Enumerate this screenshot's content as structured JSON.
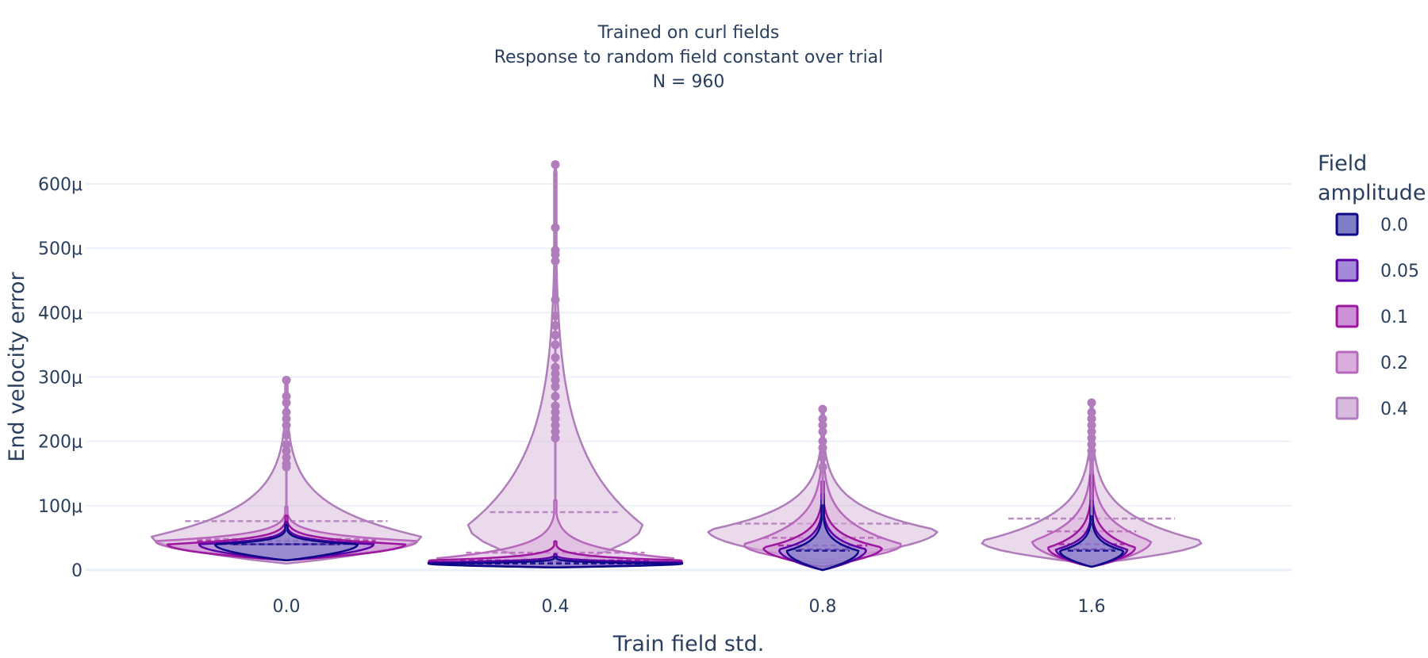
{
  "chart_data": {
    "type": "violin",
    "title": [
      "Trained on curl fields",
      "Response to random field constant over trial",
      "N = 960"
    ],
    "xlabel": "Train field std.",
    "ylabel": "End velocity error",
    "categories": [
      "0.0",
      "0.4",
      "0.8",
      "1.6"
    ],
    "y_ticks": [
      {
        "value": 0,
        "label": "0"
      },
      {
        "value": 100,
        "label": "100μ"
      },
      {
        "value": 200,
        "label": "200μ"
      },
      {
        "value": 300,
        "label": "300μ"
      },
      {
        "value": 400,
        "label": "400μ"
      },
      {
        "value": 500,
        "label": "500μ"
      },
      {
        "value": 600,
        "label": "600μ"
      }
    ],
    "y_unit": "μ (×1e-6)",
    "ylim": [
      -3,
      665
    ],
    "grid": true,
    "legend": {
      "title": [
        "Field",
        "amplitude"
      ],
      "placement": "right"
    },
    "series": [
      {
        "name": "0.0",
        "color": "#0d0887",
        "fill": "#7e7dc6",
        "groups": [
          {
            "mean": 40,
            "min": 15,
            "max": 70,
            "mode": 40,
            "spread": 90
          },
          {
            "mean": 10,
            "min": 4,
            "max": 20,
            "mode": 10,
            "spread": 160
          },
          {
            "mean": 30,
            "min": 0,
            "max": 110,
            "mode": 30,
            "spread": 45
          },
          {
            "mean": 30,
            "min": 5,
            "max": 100,
            "mode": 30,
            "spread": 40
          }
        ]
      },
      {
        "name": "0.05",
        "color": "#5c01a6",
        "fill": "#a48ad8",
        "groups": [
          {
            "mean": 40,
            "min": 15,
            "max": 75,
            "mode": 40,
            "spread": 110
          },
          {
            "mean": 12,
            "min": 4,
            "max": 25,
            "mode": 12,
            "spread": 160
          },
          {
            "mean": 32,
            "min": 0,
            "max": 120,
            "mode": 32,
            "spread": 55
          },
          {
            "mean": 32,
            "min": 5,
            "max": 110,
            "mode": 32,
            "spread": 45
          }
        ]
      },
      {
        "name": "0.1",
        "color": "#9c179e",
        "fill": "#cc91d6",
        "groups": [
          {
            "mean": 45,
            "min": 15,
            "max": 85,
            "mode": 40,
            "spread": 150
          },
          {
            "mean": 15,
            "min": 4,
            "max": 45,
            "mode": 15,
            "spread": 160
          },
          {
            "mean": 38,
            "min": 5,
            "max": 140,
            "mode": 35,
            "spread": 75
          },
          {
            "mean": 40,
            "min": 5,
            "max": 150,
            "mode": 35,
            "spread": 55
          }
        ]
      },
      {
        "name": "0.2",
        "color": "#b868bc",
        "fill": "#d9aedd",
        "groups": [
          {
            "mean": 48,
            "min": 15,
            "max": 100,
            "mode": 45,
            "spread": 165
          },
          {
            "mean": 27,
            "min": 5,
            "max": 110,
            "mode": 18,
            "spread": 150
          },
          {
            "mean": 50,
            "min": 10,
            "max": 220,
            "mode": 40,
            "spread": 100
          },
          {
            "mean": 60,
            "min": 5,
            "max": 210,
            "mode": 45,
            "spread": 75
          }
        ]
      },
      {
        "name": "0.4",
        "color": "#b07cbb",
        "fill": "#d9bcdd",
        "groups": [
          {
            "mean": 76,
            "min": 10,
            "max": 295,
            "mode": 52,
            "spread": 170
          },
          {
            "mean": 90,
            "min": 5,
            "max": 630,
            "mode": 70,
            "spread": 110
          },
          {
            "mean": 72,
            "min": 15,
            "max": 250,
            "mode": 62,
            "spread": 145
          },
          {
            "mean": 80,
            "min": 10,
            "max": 260,
            "mode": 45,
            "spread": 140
          }
        ]
      }
    ],
    "outliers": {
      "series": "0.4",
      "groups": [
        [
          160,
          165,
          175,
          185,
          195,
          210,
          225,
          235,
          245,
          260,
          270,
          295
        ],
        [
          205,
          215,
          225,
          235,
          245,
          255,
          270,
          285,
          295,
          305,
          315,
          330,
          350,
          365,
          380,
          395,
          420,
          480,
          490,
          497,
          532,
          630
        ],
        [
          160,
          175,
          190,
          200,
          215,
          225,
          235,
          250
        ],
        [
          175,
          185,
          195,
          205,
          215,
          225,
          235,
          245,
          260
        ]
      ]
    }
  }
}
